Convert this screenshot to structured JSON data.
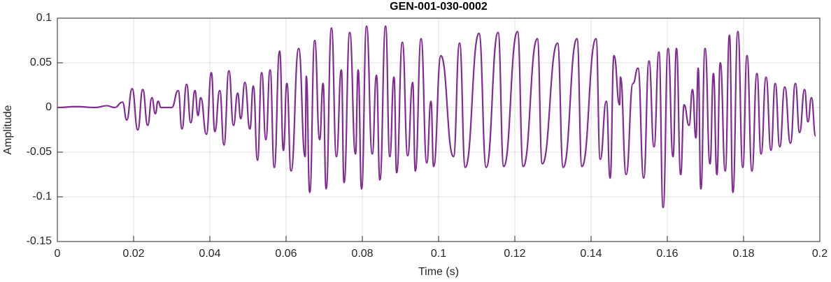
{
  "chart_data": {
    "type": "line",
    "title": "GEN-001-030-0002",
    "x_label": "Time (s)",
    "y_label": "Amplitude",
    "xlim": [
      0,
      0.2
    ],
    "ylim": [
      -0.15,
      0.1
    ],
    "xticks": [
      0,
      0.02,
      0.04,
      0.06,
      0.08,
      0.1,
      0.12,
      0.14,
      0.16,
      0.18,
      0.2
    ],
    "yticks": [
      -0.15,
      -0.1,
      -0.05,
      0,
      0.05,
      0.1
    ],
    "grid": true,
    "x": [
      0,
      0.005,
      0.01,
      0.013,
      0.015,
      0.0171,
      0.0182,
      0.0196,
      0.0211,
      0.0224,
      0.0237,
      0.0248,
      0.0257,
      0.0264,
      0.0272,
      0.03,
      0.0317,
      0.0327,
      0.0339,
      0.035,
      0.0361,
      0.0369,
      0.0376,
      0.0391,
      0.0404,
      0.0413,
      0.0426,
      0.0437,
      0.045,
      0.0462,
      0.0473,
      0.0481,
      0.0492,
      0.0505,
      0.0514,
      0.0525,
      0.0536,
      0.0547,
      0.0558,
      0.0569,
      0.0583,
      0.0593,
      0.0602,
      0.0613,
      0.0633,
      0.065,
      0.0653,
      0.0662,
      0.0675,
      0.0688,
      0.0697,
      0.0705,
      0.0719,
      0.0732,
      0.0745,
      0.0752,
      0.0767,
      0.0782,
      0.0789,
      0.0798,
      0.0811,
      0.0826,
      0.0837,
      0.0846,
      0.0861,
      0.0872,
      0.0883,
      0.089,
      0.0905,
      0.0919,
      0.0932,
      0.0939,
      0.0954,
      0.0969,
      0.098,
      0.0987,
      0.1006,
      0.1039,
      0.1055,
      0.107,
      0.1106,
      0.1125,
      0.1156,
      0.1171,
      0.1207,
      0.1222,
      0.1259,
      0.1272,
      0.1312,
      0.1327,
      0.1363,
      0.1376,
      0.1413,
      0.1424,
      0.144,
      0.145,
      0.146,
      0.1475,
      0.1477,
      0.1492,
      0.151,
      0.1523,
      0.1538,
      0.1552,
      0.1565,
      0.1578,
      0.1589,
      0.1602,
      0.1615,
      0.1624,
      0.1635,
      0.1644,
      0.1657,
      0.1666,
      0.1675,
      0.1681,
      0.1688,
      0.1699,
      0.1712,
      0.1721,
      0.173,
      0.1739,
      0.1752,
      0.1763,
      0.1772,
      0.1785,
      0.1798,
      0.1809,
      0.1822,
      0.1835,
      0.1846,
      0.1859,
      0.1872,
      0.1883,
      0.1895,
      0.1908,
      0.1923,
      0.1936,
      0.1947,
      0.196,
      0.1969,
      0.1978,
      0.1989
    ],
    "series": [
      {
        "name": "Amplitude",
        "color": "#7e2f8e",
        "values": [
          0,
          0.001,
          0.0,
          0.002,
          0.0,
          0.006,
          -0.014,
          0.021,
          -0.025,
          0.02,
          -0.02,
          0.011,
          -0.007,
          0.007,
          0.0,
          0.0,
          0.019,
          -0.024,
          0.026,
          -0.017,
          0.019,
          -0.009,
          0.011,
          -0.03,
          0.039,
          -0.027,
          0.019,
          -0.042,
          0.041,
          -0.02,
          0.016,
          -0.0125,
          0.028,
          -0.024,
          0.024,
          -0.059,
          0.039,
          -0.036,
          0.042,
          -0.067,
          0.063,
          -0.048,
          0.027,
          -0.071,
          0.066,
          -0.055,
          0.035,
          -0.095,
          0.075,
          -0.036,
          0.027,
          -0.091,
          0.089,
          -0.055,
          0.042,
          -0.084,
          0.084,
          -0.052,
          0.042,
          -0.091,
          0.091,
          -0.052,
          0.036,
          -0.081,
          0.091,
          -0.055,
          0.034,
          -0.073,
          0.073,
          -0.054,
          0.028,
          -0.071,
          0.077,
          -0.062,
          0.007,
          -0.066,
          0.058,
          -0.055,
          0.072,
          -0.067,
          0.083,
          -0.067,
          0.084,
          -0.066,
          0.085,
          -0.066,
          0.077,
          -0.063,
          0.072,
          -0.067,
          0.077,
          -0.066,
          0.077,
          -0.058,
          0.007,
          -0.079,
          0.058,
          0.003,
          0.034,
          -0.075,
          0.027,
          0.044,
          -0.079,
          0.052,
          -0.044,
          0.062,
          -0.112,
          0.066,
          -0.055,
          0.066,
          -0.075,
          0.003,
          -0.02,
          0.02,
          -0.034,
          0.044,
          -0.091,
          0.066,
          -0.063,
          0.038,
          -0.075,
          0.05,
          -0.071,
          0.081,
          -0.095,
          0.085,
          -0.067,
          0.058,
          -0.071,
          0.038,
          -0.052,
          0.034,
          -0.048,
          0.027,
          -0.044,
          0.023,
          -0.04,
          0.027,
          -0.028,
          0.02,
          -0.016,
          0.011,
          -0.032
        ]
      }
    ]
  }
}
